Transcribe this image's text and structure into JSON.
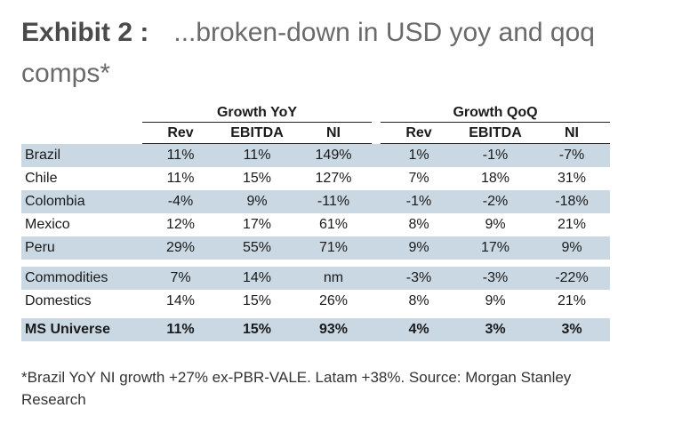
{
  "exhibit": {
    "label": "Exhibit 2 :",
    "title": "...broken-down in USD yoy and qoq comps*"
  },
  "table": {
    "group_headers": [
      "Growth YoY",
      "Growth QoQ"
    ],
    "column_headers": [
      "Rev",
      "EBITDA",
      "NI",
      "Rev",
      "EBITDA",
      "NI"
    ],
    "rows": [
      {
        "name": "Brazil",
        "values": [
          "11%",
          "11%",
          "149%",
          "1%",
          "-1%",
          "-7%"
        ]
      },
      {
        "name": "Chile",
        "values": [
          "11%",
          "15%",
          "127%",
          "7%",
          "18%",
          "31%"
        ]
      },
      {
        "name": "Colombia",
        "values": [
          "-4%",
          "9%",
          "-11%",
          "-1%",
          "-2%",
          "-18%"
        ]
      },
      {
        "name": "Mexico",
        "values": [
          "12%",
          "17%",
          "61%",
          "8%",
          "9%",
          "21%"
        ]
      },
      {
        "name": "Peru",
        "values": [
          "29%",
          "55%",
          "71%",
          "9%",
          "17%",
          "9%"
        ]
      },
      {
        "name": "Commodities",
        "values": [
          "7%",
          "14%",
          "nm",
          "-3%",
          "-3%",
          "-22%"
        ]
      },
      {
        "name": "Domestics",
        "values": [
          "14%",
          "15%",
          "26%",
          "8%",
          "9%",
          "21%"
        ]
      },
      {
        "name": "MS Universe",
        "values": [
          "11%",
          "15%",
          "93%",
          "4%",
          "3%",
          "3%"
        ]
      }
    ]
  },
  "footnote": "*Brazil YoY NI growth +27% ex-PBR-VALE. Latam +38%. Source: Morgan Stanley Research",
  "colors": {
    "row_shade": "#c9d8e3"
  }
}
